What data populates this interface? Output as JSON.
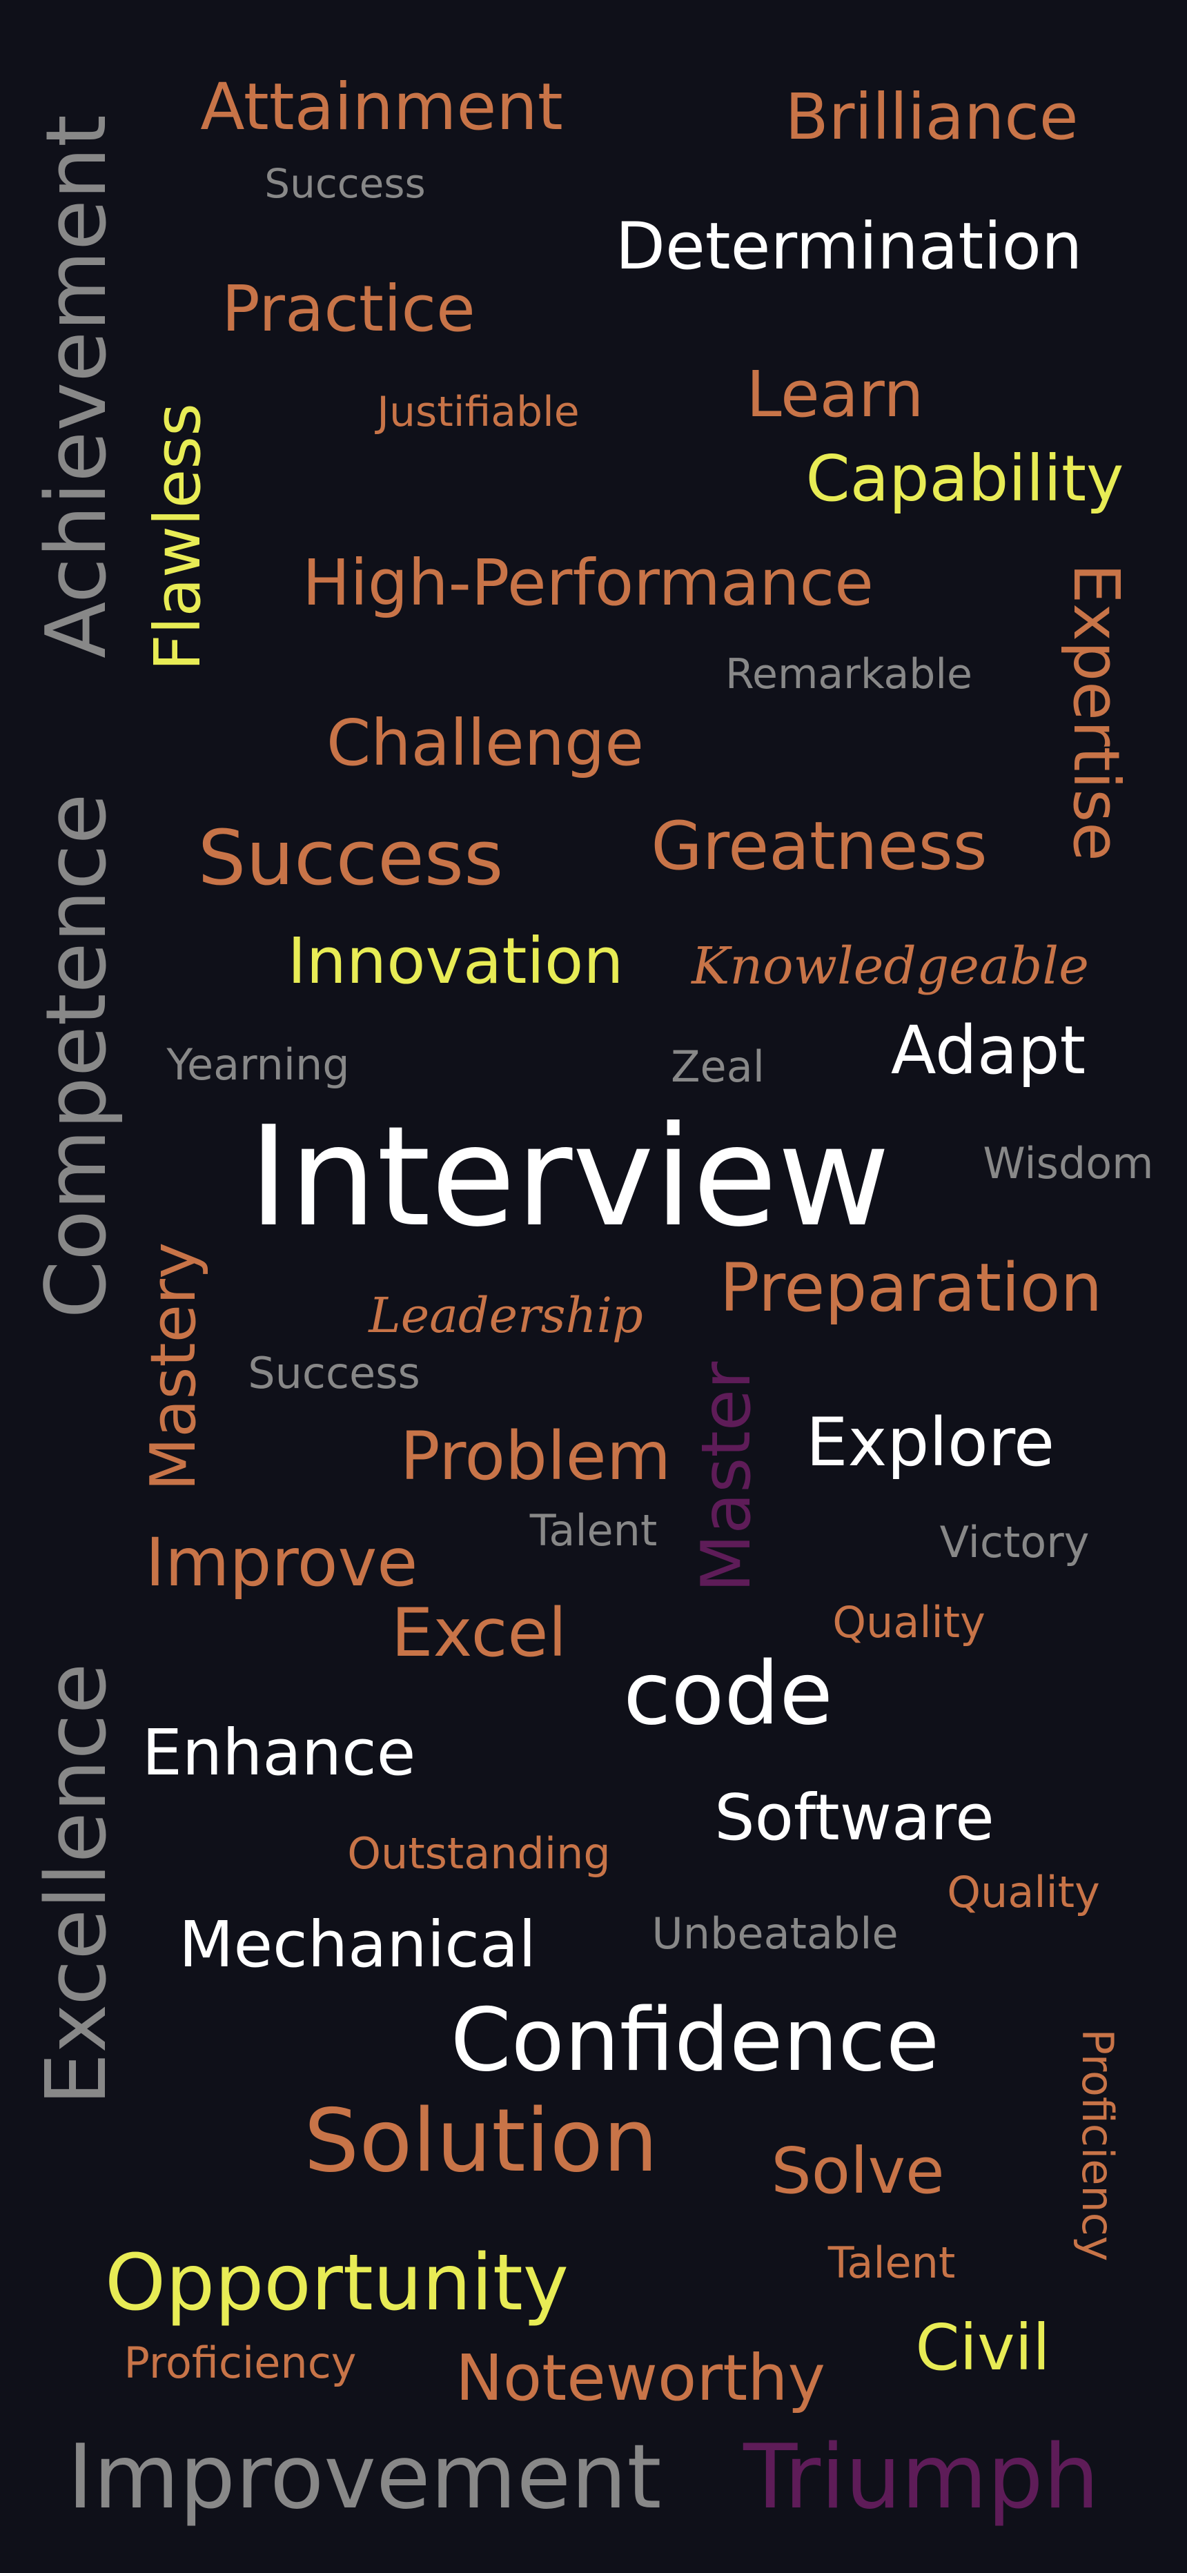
{
  "colors": {
    "background": "#0f1019",
    "orange": "#c87448",
    "white": "#ffffff",
    "yellow": "#e8ec55",
    "gray": "#888888",
    "purple": "#5e1c58"
  },
  "words": [
    {
      "text": "Attainment",
      "color": "orange"
    },
    {
      "text": "Brilliance",
      "color": "orange"
    },
    {
      "text": "Success",
      "color": "gray"
    },
    {
      "text": "Determination",
      "color": "white"
    },
    {
      "text": "Practice",
      "color": "orange"
    },
    {
      "text": "Justifiable",
      "color": "orange"
    },
    {
      "text": "Learn",
      "color": "orange"
    },
    {
      "text": "Capability",
      "color": "yellow"
    },
    {
      "text": "Flawless",
      "color": "yellow"
    },
    {
      "text": "High-Performance",
      "color": "orange"
    },
    {
      "text": "Expertise",
      "color": "orange"
    },
    {
      "text": "Remarkable",
      "color": "gray"
    },
    {
      "text": "Challenge",
      "color": "orange"
    },
    {
      "text": "Success",
      "color": "orange"
    },
    {
      "text": "Greatness",
      "color": "orange"
    },
    {
      "text": "Innovation",
      "color": "yellow"
    },
    {
      "text": "Knowledgeable",
      "color": "orange"
    },
    {
      "text": "Yearning",
      "color": "gray"
    },
    {
      "text": "Zeal",
      "color": "gray"
    },
    {
      "text": "Adapt",
      "color": "white"
    },
    {
      "text": "Interview",
      "color": "white"
    },
    {
      "text": "Wisdom",
      "color": "gray"
    },
    {
      "text": "Competence",
      "color": "gray"
    },
    {
      "text": "Achievement",
      "color": "gray"
    },
    {
      "text": "Mastery",
      "color": "orange"
    },
    {
      "text": "Leadership",
      "color": "orange"
    },
    {
      "text": "Preparation",
      "color": "orange"
    },
    {
      "text": "Success",
      "color": "gray"
    },
    {
      "text": "Master",
      "color": "purple"
    },
    {
      "text": "Problem",
      "color": "orange"
    },
    {
      "text": "Explore",
      "color": "white"
    },
    {
      "text": "Talent",
      "color": "gray"
    },
    {
      "text": "Improve",
      "color": "orange"
    },
    {
      "text": "Victory",
      "color": "gray"
    },
    {
      "text": "Excel",
      "color": "orange"
    },
    {
      "text": "Quality",
      "color": "orange"
    },
    {
      "text": "code",
      "color": "white"
    },
    {
      "text": "Excellence",
      "color": "gray"
    },
    {
      "text": "Enhance",
      "color": "white"
    },
    {
      "text": "Software",
      "color": "white"
    },
    {
      "text": "Outstanding",
      "color": "orange"
    },
    {
      "text": "Quality",
      "color": "orange"
    },
    {
      "text": "Mechanical",
      "color": "white"
    },
    {
      "text": "Unbeatable",
      "color": "gray"
    },
    {
      "text": "Confidence",
      "color": "white"
    },
    {
      "text": "Solution",
      "color": "orange"
    },
    {
      "text": "Proficiency",
      "color": "orange"
    },
    {
      "text": "Solve",
      "color": "orange"
    },
    {
      "text": "Opportunity",
      "color": "yellow"
    },
    {
      "text": "Talent",
      "color": "orange"
    },
    {
      "text": "Proficiency",
      "color": "orange"
    },
    {
      "text": "Civil",
      "color": "yellow"
    },
    {
      "text": "Noteworthy",
      "color": "orange"
    },
    {
      "text": "Improvement",
      "color": "gray"
    },
    {
      "text": "Triumph",
      "color": "purple"
    }
  ]
}
